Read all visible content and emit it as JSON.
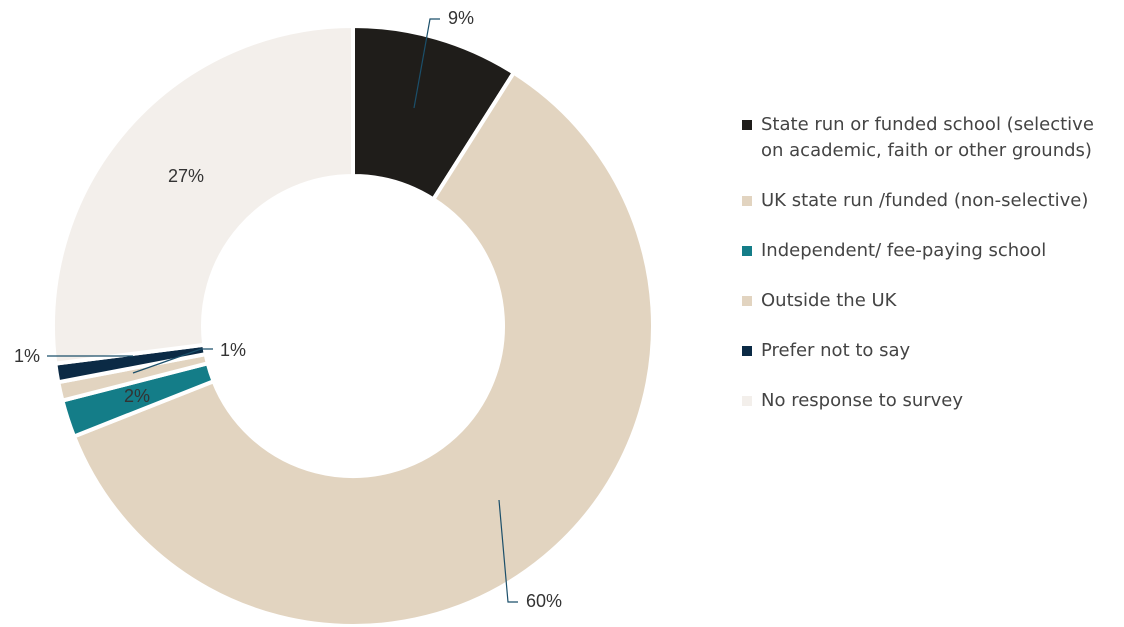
{
  "chart_data": {
    "type": "pie",
    "donut": true,
    "title": "",
    "slices": [
      {
        "name": "State run or funded school (selective\non academic, faith or other grounds)",
        "value": 9,
        "label": "9%",
        "color": "#1f1d1a"
      },
      {
        "name": "UK state run /funded (non-selective)",
        "value": 60,
        "label": "60%",
        "color": "#e2d4c0"
      },
      {
        "name": "Independent/ fee-paying school",
        "value": 2,
        "label": "2%",
        "color": "#147d88"
      },
      {
        "name": "Outside the UK",
        "value": 1,
        "label": "1%",
        "color": "#e2d4c0"
      },
      {
        "name": "Prefer not to say",
        "value": 1,
        "label": "1%",
        "color": "#0b2a45"
      },
      {
        "name": "No response to survey",
        "value": 27,
        "label": "27%",
        "color": "#f3efeb"
      }
    ],
    "legend_position": "right"
  }
}
